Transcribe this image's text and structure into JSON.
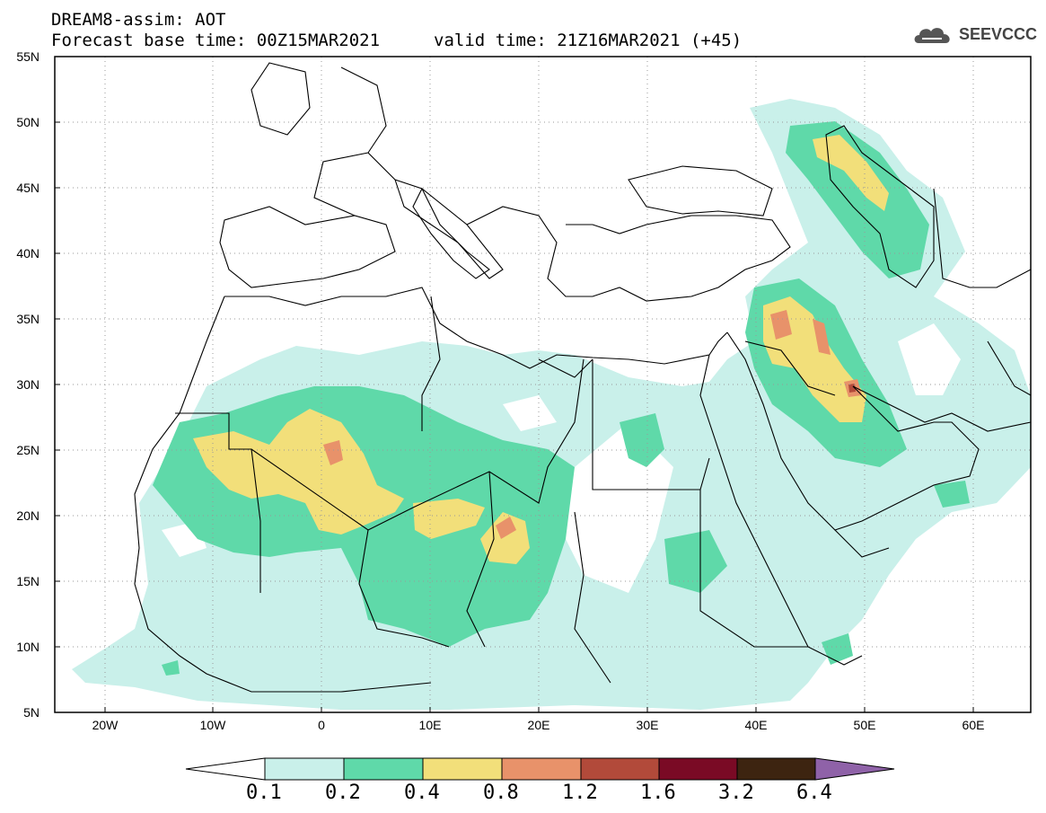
{
  "title": {
    "line1": "DREAM8-assim: AOT",
    "line2": "Forecast base time: 00Z15MAR2021",
    "valid": "valid time: 21Z16MAR2021 (+45)"
  },
  "logo": {
    "text": "SEEVCCC",
    "icon": "cloud-icon"
  },
  "map": {
    "lat_labels": [
      "55N",
      "50N",
      "45N",
      "40N",
      "35N",
      "30N",
      "25N",
      "20N",
      "15N",
      "10N",
      "5N"
    ],
    "lon_labels": [
      "20W",
      "10W",
      "0",
      "10E",
      "20E",
      "30E",
      "40E",
      "50E",
      "60E"
    ],
    "lat_range": [
      5,
      55
    ],
    "lon_range": [
      -25,
      65
    ],
    "grid": true
  },
  "colorbar": {
    "labels": [
      "0.1",
      "0.2",
      "0.4",
      "0.8",
      "1.2",
      "1.6",
      "3.2",
      "6.4"
    ],
    "colors": [
      "#c9f0ea",
      "#5fd9a9",
      "#f2df7a",
      "#e8926a",
      "#b24a3a",
      "#7a0a25",
      "#3d2410",
      "#8f62a8"
    ]
  },
  "chart_data": {
    "type": "heatmap",
    "title": "DREAM8-assim: AOT",
    "xlabel": "",
    "ylabel": "",
    "x_ticks": [
      "20W",
      "10W",
      "0",
      "10E",
      "20E",
      "30E",
      "40E",
      "50E",
      "60E"
    ],
    "y_ticks": [
      "55N",
      "50N",
      "45N",
      "40N",
      "35N",
      "30N",
      "25N",
      "20N",
      "15N",
      "10N",
      "5N"
    ],
    "xlim": [
      -25,
      65
    ],
    "ylim": [
      5,
      55
    ],
    "levels": [
      0.1,
      0.2,
      0.4,
      0.8,
      1.2,
      1.6,
      3.2,
      6.4
    ],
    "grid": true
  }
}
